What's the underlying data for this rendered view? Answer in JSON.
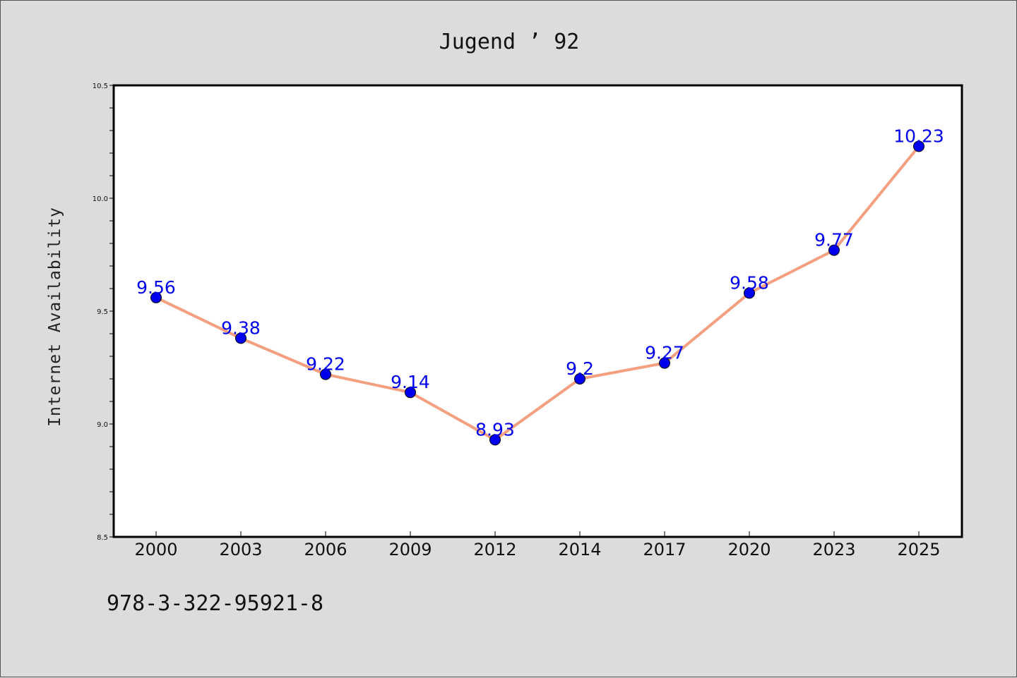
{
  "chart_data": {
    "type": "line",
    "title": "Jugend ’ 92",
    "xlabel": "",
    "ylabel": "Internet Availability",
    "categories": [
      "2000",
      "2003",
      "2006",
      "2009",
      "2012",
      "2014",
      "2017",
      "2020",
      "2023",
      "2025"
    ],
    "values": [
      9.56,
      9.38,
      9.22,
      9.14,
      8.93,
      9.2,
      9.27,
      9.58,
      9.77,
      10.23
    ],
    "data_labels": [
      "9.56",
      "9.38",
      "9.22",
      "9.14",
      "8.93",
      "9.2",
      "9.27",
      "9.58",
      "9.77",
      "10.23"
    ],
    "ylim": [
      8.5,
      10.5
    ],
    "yticks": [
      "8.5",
      "9.0",
      "9.5",
      "10.0",
      "10.5"
    ],
    "grid": false,
    "legend": "none",
    "colors": {
      "line": "#f4a080",
      "marker": "#0000ee",
      "label": "#0000ee"
    }
  },
  "footer": {
    "code": "978-3-322-95921-8"
  }
}
